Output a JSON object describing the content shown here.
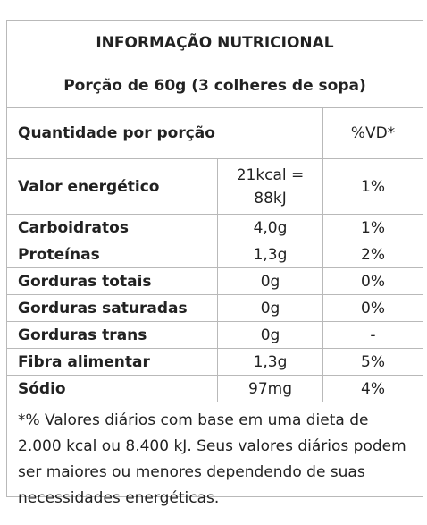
{
  "header": {
    "title": "INFORMAÇÃO NUTRICIONAL",
    "serving": "Porção de 60g (3 colheres de sopa)"
  },
  "columns": {
    "quantity_label": "Quantidade por porção",
    "dv_label": "%VD*"
  },
  "rows": [
    {
      "name": "Valor energético",
      "amount": "21kcal = 88kJ",
      "dv": "1%"
    },
    {
      "name": "Carboidratos",
      "amount": "4,0g",
      "dv": "1%"
    },
    {
      "name": "Proteínas",
      "amount": "1,3g",
      "dv": "2%"
    },
    {
      "name": "Gorduras totais",
      "amount": "0g",
      "dv": "0%"
    },
    {
      "name": "Gorduras saturadas",
      "amount": "0g",
      "dv": "0%"
    },
    {
      "name": "Gorduras trans",
      "amount": "0g",
      "dv": "-"
    },
    {
      "name": "Fibra alimentar",
      "amount": "1,3g",
      "dv": "5%"
    },
    {
      "name": "Sódio",
      "amount": "97mg",
      "dv": "4%"
    }
  ],
  "footnote": "*% Valores diários com base em uma dieta de 2.000 kcal ou 8.400 kJ. Seus valores diários podem ser maiores ou menores dependendo de suas necessidades energéticas."
}
